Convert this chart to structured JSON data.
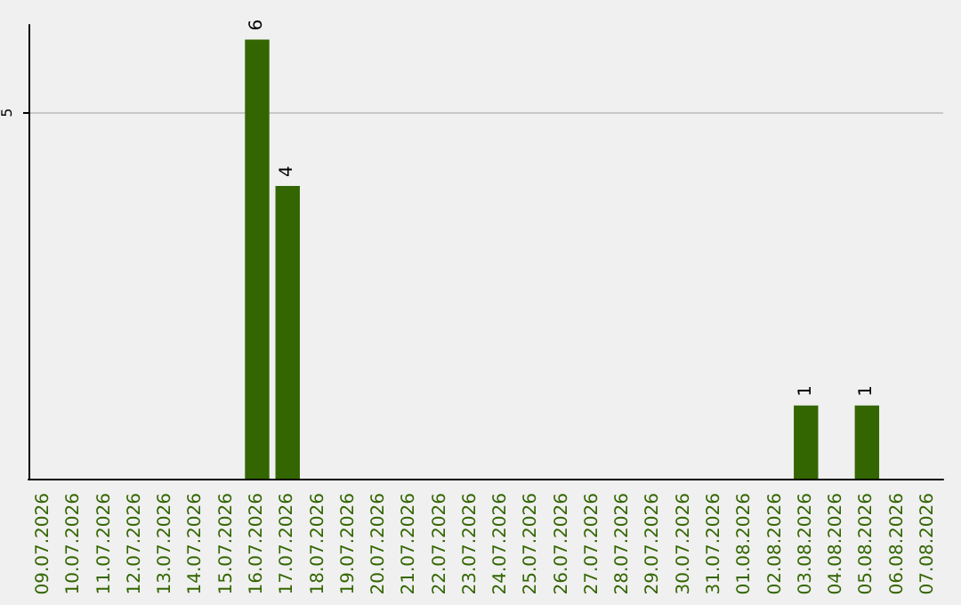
{
  "chart_data": {
    "type": "bar",
    "categories": [
      "09.07.2026",
      "10.07.2026",
      "11.07.2026",
      "12.07.2026",
      "13.07.2026",
      "14.07.2026",
      "15.07.2026",
      "16.07.2026",
      "17.07.2026",
      "18.07.2026",
      "19.07.2026",
      "20.07.2026",
      "21.07.2026",
      "22.07.2026",
      "23.07.2026",
      "24.07.2026",
      "25.07.2026",
      "26.07.2026",
      "27.07.2026",
      "28.07.2026",
      "29.07.2026",
      "30.07.2026",
      "31.07.2026",
      "01.08.2026",
      "02.08.2026",
      "03.08.2026",
      "04.08.2026",
      "05.08.2026",
      "06.08.2026",
      "07.08.2026"
    ],
    "values": [
      0,
      0,
      0,
      0,
      0,
      0,
      0,
      6,
      4,
      0,
      0,
      0,
      0,
      0,
      0,
      0,
      0,
      0,
      0,
      0,
      0,
      0,
      0,
      0,
      0,
      1,
      0,
      1,
      0,
      0
    ],
    "value_labels": [
      null,
      null,
      null,
      null,
      null,
      null,
      null,
      "6",
      "4",
      null,
      null,
      null,
      null,
      null,
      null,
      null,
      null,
      null,
      null,
      null,
      null,
      null,
      null,
      null,
      null,
      "1",
      null,
      "1",
      null,
      null
    ],
    "color": "#336600",
    "ylim": [
      0,
      6.2
    ],
    "yticks": [
      5
    ],
    "grid": "y"
  }
}
